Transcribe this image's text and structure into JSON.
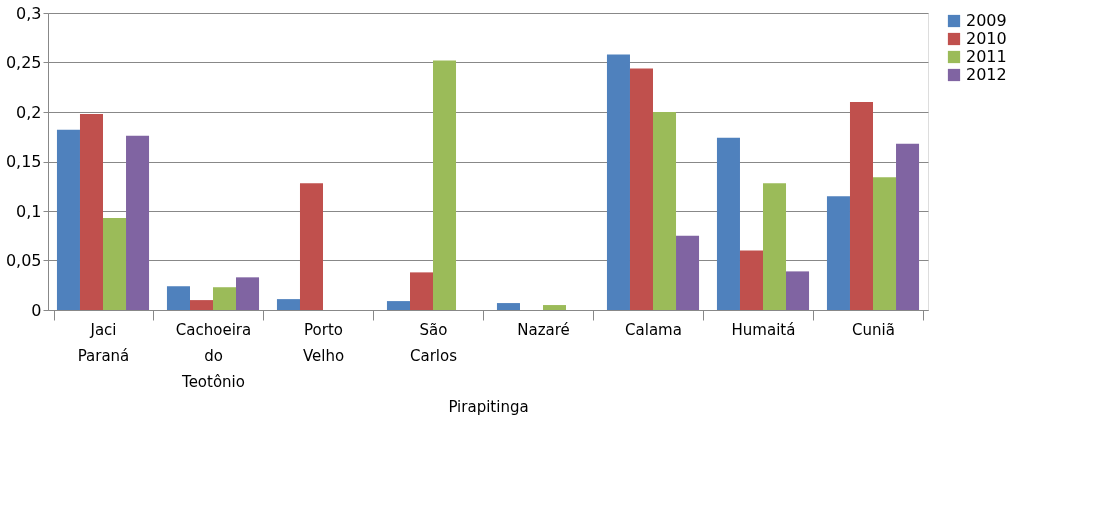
{
  "chart_data": {
    "type": "bar",
    "xlabel": "Pirapitinga",
    "categories": [
      "Jaci Paraná",
      "Cachoeira do Teotônio",
      "Porto Velho",
      "São Carlos",
      "Nazaré",
      "Calama",
      "Humaitá",
      "Cuniã"
    ],
    "series": [
      {
        "name": "2009",
        "color": "#4f81bd",
        "values": [
          0.182,
          0.024,
          0.011,
          0.009,
          0.007,
          0.258,
          0.174,
          0.115
        ]
      },
      {
        "name": "2010",
        "color": "#c0504d",
        "values": [
          0.198,
          0.01,
          0.128,
          0.038,
          0,
          0.244,
          0.06,
          0.21
        ]
      },
      {
        "name": "2011",
        "color": "#9bbb59",
        "values": [
          0.093,
          0.023,
          0,
          0.252,
          0.005,
          0.2,
          0.128,
          0.134
        ]
      },
      {
        "name": "2012",
        "color": "#8064a2",
        "values": [
          0.176,
          0.033,
          0,
          0,
          0,
          0.075,
          0.039,
          0.168
        ]
      }
    ],
    "ylim": [
      0,
      0.3
    ],
    "yticks": [
      0,
      {
        "value": 0.05,
        "label": "0,05"
      },
      {
        "value": 0.1,
        "label": "0,1"
      },
      {
        "value": 0.15,
        "label": "0,15"
      },
      {
        "value": 0.2,
        "label": "0,2"
      },
      {
        "value": 0.25,
        "label": "0,25"
      },
      {
        "value": 0.3,
        "label": "0,3"
      }
    ],
    "grid": "y",
    "legend": "right"
  }
}
